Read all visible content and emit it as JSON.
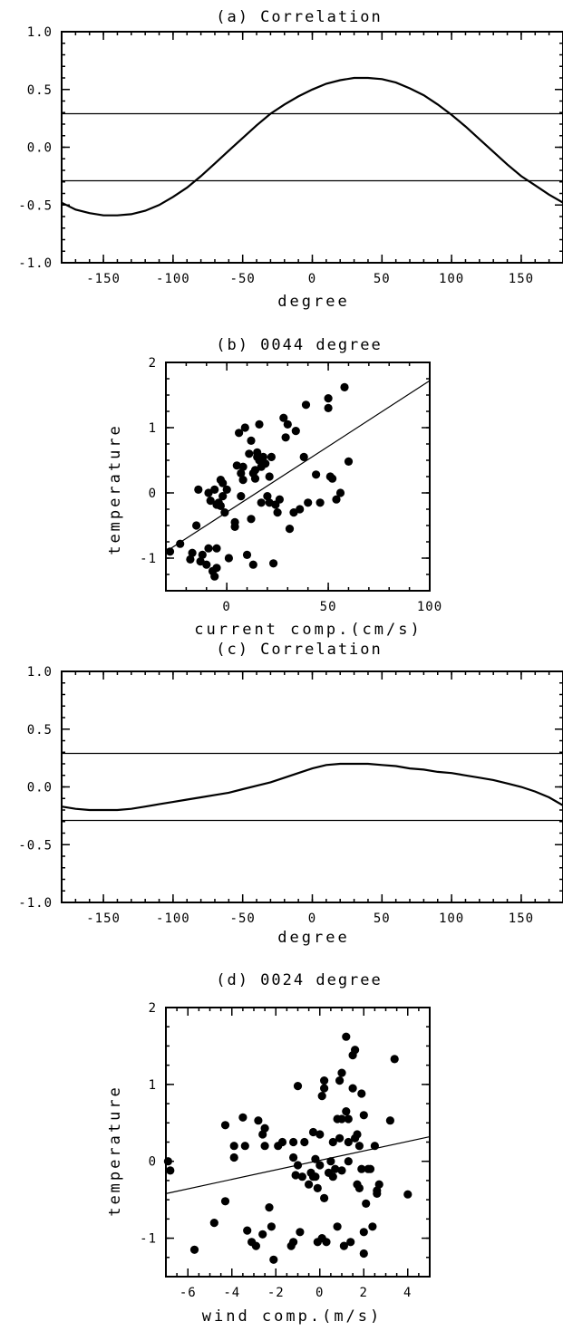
{
  "chart_data": [
    {
      "id": "a",
      "type": "line",
      "title": "(a) Correlation",
      "xlabel": "degree",
      "ylabel": "",
      "xlim": [
        -180,
        180
      ],
      "ylim": [
        -1.0,
        1.0
      ],
      "xticks": [
        -150,
        -100,
        -50,
        0,
        50,
        100,
        150
      ],
      "yticks": [
        1.0,
        0.5,
        0.0,
        -0.5,
        -1.0
      ],
      "ytick_labels": [
        "1.0",
        "0.5",
        "0.0",
        "-0.5",
        "-1.0"
      ],
      "series": [
        {
          "x": [
            -180,
            -170,
            -160,
            -150,
            -140,
            -130,
            -120,
            -110,
            -100,
            -90,
            -80,
            -70,
            -60,
            -50,
            -40,
            -30,
            -20,
            -10,
            0,
            10,
            20,
            30,
            40,
            50,
            60,
            70,
            80,
            90,
            100,
            110,
            120,
            130,
            140,
            150,
            160,
            170,
            180
          ],
          "y": [
            -0.48,
            -0.54,
            -0.57,
            -0.59,
            -0.59,
            -0.58,
            -0.55,
            -0.5,
            -0.43,
            -0.35,
            -0.25,
            -0.14,
            -0.03,
            0.08,
            0.19,
            0.29,
            0.37,
            0.44,
            0.5,
            0.55,
            0.58,
            0.6,
            0.6,
            0.59,
            0.56,
            0.51,
            0.45,
            0.37,
            0.28,
            0.18,
            0.07,
            -0.04,
            -0.15,
            -0.25,
            -0.33,
            -0.41,
            -0.48
          ]
        }
      ],
      "hlines": [
        0.29,
        -0.29
      ]
    },
    {
      "id": "b",
      "type": "scatter",
      "title": "(b) 0044 degree",
      "xlabel": "current comp.(cm/s)",
      "ylabel": "temperature",
      "xlim": [
        -30,
        100
      ],
      "ylim": [
        -1.5,
        2.0
      ],
      "xticks": [
        0,
        50,
        100
      ],
      "yticks": [
        -1,
        0,
        1,
        2
      ],
      "points": [
        [
          -28,
          -0.9
        ],
        [
          -23,
          -0.78
        ],
        [
          -18,
          -1.02
        ],
        [
          -17,
          -0.92
        ],
        [
          -15,
          -0.5
        ],
        [
          -14,
          0.05
        ],
        [
          -13,
          -1.05
        ],
        [
          -12,
          -0.95
        ],
        [
          -10,
          -1.1
        ],
        [
          -9,
          -0.85
        ],
        [
          -9,
          0.0
        ],
        [
          -8,
          -0.12
        ],
        [
          -7,
          -1.2
        ],
        [
          -6,
          -1.28
        ],
        [
          -6,
          0.05
        ],
        [
          -5,
          -0.18
        ],
        [
          -5,
          -1.15
        ],
        [
          -5,
          -0.85
        ],
        [
          -4,
          -0.15
        ],
        [
          -3,
          0.2
        ],
        [
          -3,
          -0.2
        ],
        [
          -2,
          -0.05
        ],
        [
          -2,
          0.15
        ],
        [
          -1,
          -0.3
        ],
        [
          0,
          0.05
        ],
        [
          1,
          -1.0
        ],
        [
          4,
          -0.52
        ],
        [
          4,
          -0.45
        ],
        [
          5,
          0.42
        ],
        [
          6,
          0.92
        ],
        [
          7,
          0.3
        ],
        [
          7,
          -0.05
        ],
        [
          8,
          0.2
        ],
        [
          8,
          0.4
        ],
        [
          9,
          1.0
        ],
        [
          10,
          -0.95
        ],
        [
          11,
          0.6
        ],
        [
          12,
          0.8
        ],
        [
          12,
          -0.4
        ],
        [
          13,
          0.3
        ],
        [
          13,
          -1.1
        ],
        [
          14,
          0.35
        ],
        [
          14,
          0.22
        ],
        [
          15,
          0.55
        ],
        [
          15,
          0.62
        ],
        [
          16,
          1.05
        ],
        [
          16,
          0.5
        ],
        [
          17,
          -0.15
        ],
        [
          17,
          0.4
        ],
        [
          18,
          0.55
        ],
        [
          19,
          0.45
        ],
        [
          20,
          -0.05
        ],
        [
          21,
          0.25
        ],
        [
          21,
          -0.15
        ],
        [
          22,
          0.55
        ],
        [
          23,
          -1.08
        ],
        [
          24,
          -0.18
        ],
        [
          25,
          -0.3
        ],
        [
          26,
          -0.1
        ],
        [
          28,
          1.15
        ],
        [
          29,
          0.85
        ],
        [
          30,
          1.05
        ],
        [
          31,
          -0.55
        ],
        [
          33,
          -0.3
        ],
        [
          34,
          0.95
        ],
        [
          36,
          -0.25
        ],
        [
          38,
          0.55
        ],
        [
          39,
          1.35
        ],
        [
          40,
          -0.15
        ],
        [
          44,
          0.28
        ],
        [
          46,
          -0.15
        ],
        [
          50,
          1.45
        ],
        [
          50,
          1.3
        ],
        [
          51,
          0.25
        ],
        [
          52,
          0.22
        ],
        [
          54,
          -0.1
        ],
        [
          56,
          0.0
        ],
        [
          58,
          1.62
        ],
        [
          60,
          0.48
        ]
      ],
      "fit_line": [
        [
          -30,
          -0.9
        ],
        [
          100,
          1.72
        ]
      ]
    },
    {
      "id": "c",
      "type": "line",
      "title": "(c) Correlation",
      "xlabel": "degree",
      "ylabel": "",
      "xlim": [
        -180,
        180
      ],
      "ylim": [
        -1.0,
        1.0
      ],
      "xticks": [
        -150,
        -100,
        -50,
        0,
        50,
        100,
        150
      ],
      "yticks": [
        1.0,
        0.5,
        0.0,
        -0.5,
        -1.0
      ],
      "ytick_labels": [
        "1.0",
        "0.5",
        "0.0",
        "-0.5",
        "-1.0"
      ],
      "series": [
        {
          "x": [
            -180,
            -170,
            -160,
            -150,
            -140,
            -130,
            -120,
            -110,
            -100,
            -90,
            -80,
            -70,
            -60,
            -50,
            -40,
            -30,
            -20,
            -10,
            0,
            10,
            20,
            30,
            40,
            50,
            60,
            70,
            80,
            90,
            100,
            110,
            120,
            130,
            140,
            150,
            160,
            170,
            180
          ],
          "y": [
            -0.17,
            -0.19,
            -0.2,
            -0.2,
            -0.2,
            -0.19,
            -0.17,
            -0.15,
            -0.13,
            -0.11,
            -0.09,
            -0.07,
            -0.05,
            -0.02,
            0.01,
            0.04,
            0.08,
            0.12,
            0.16,
            0.19,
            0.2,
            0.2,
            0.2,
            0.19,
            0.18,
            0.16,
            0.15,
            0.13,
            0.12,
            0.1,
            0.08,
            0.06,
            0.03,
            0.0,
            -0.04,
            -0.09,
            -0.16
          ]
        }
      ],
      "hlines": [
        0.29,
        -0.29
      ]
    },
    {
      "id": "d",
      "type": "scatter",
      "title": "(d) 0024 degree",
      "xlabel": "wind comp.(m/s)",
      "ylabel": "temperature",
      "xlim": [
        -7,
        5
      ],
      "ylim": [
        -1.5,
        2.0
      ],
      "xticks": [
        -6,
        -4,
        -2,
        0,
        2,
        4
      ],
      "yticks": [
        -1,
        0,
        1,
        2
      ],
      "points": [
        [
          -6.9,
          0.0
        ],
        [
          -6.8,
          -0.12
        ],
        [
          -5.7,
          -1.15
        ],
        [
          -4.8,
          -0.8
        ],
        [
          -4.3,
          -0.52
        ],
        [
          -4.3,
          0.47
        ],
        [
          -3.9,
          0.2
        ],
        [
          -3.9,
          0.05
        ],
        [
          -3.5,
          0.57
        ],
        [
          -3.4,
          0.2
        ],
        [
          -3.3,
          -0.9
        ],
        [
          -3.1,
          -1.05
        ],
        [
          -2.9,
          -1.1
        ],
        [
          -2.8,
          0.53
        ],
        [
          -2.6,
          0.35
        ],
        [
          -2.6,
          -0.95
        ],
        [
          -2.5,
          0.43
        ],
        [
          -2.5,
          0.2
        ],
        [
          -2.3,
          -0.6
        ],
        [
          -2.2,
          -0.85
        ],
        [
          -2.1,
          -1.28
        ],
        [
          -1.9,
          0.2
        ],
        [
          -1.7,
          0.25
        ],
        [
          -1.3,
          -1.1
        ],
        [
          -1.2,
          -1.05
        ],
        [
          -1.2,
          0.25
        ],
        [
          -1.2,
          0.05
        ],
        [
          -1.1,
          -0.18
        ],
        [
          -1.0,
          -0.05
        ],
        [
          -1.0,
          0.98
        ],
        [
          -0.9,
          -0.92
        ],
        [
          -0.8,
          -0.2
        ],
        [
          -0.7,
          0.25
        ],
        [
          -0.5,
          -0.3
        ],
        [
          -0.4,
          -0.15
        ],
        [
          -0.3,
          -0.2
        ],
        [
          -0.3,
          0.38
        ],
        [
          -0.2,
          -0.2
        ],
        [
          -0.2,
          0.03
        ],
        [
          -0.1,
          -1.05
        ],
        [
          -0.1,
          -0.35
        ],
        [
          0.0,
          -0.05
        ],
        [
          0.0,
          0.35
        ],
        [
          0.1,
          0.85
        ],
        [
          0.1,
          -1.0
        ],
        [
          0.2,
          -0.48
        ],
        [
          0.2,
          0.95
        ],
        [
          0.2,
          1.05
        ],
        [
          0.3,
          -1.05
        ],
        [
          0.4,
          -0.15
        ],
        [
          0.5,
          0.0
        ],
        [
          0.6,
          0.25
        ],
        [
          0.6,
          -0.2
        ],
        [
          0.7,
          -0.1
        ],
        [
          0.8,
          0.55
        ],
        [
          0.8,
          -0.85
        ],
        [
          0.9,
          1.05
        ],
        [
          0.9,
          0.3
        ],
        [
          1.0,
          1.15
        ],
        [
          1.0,
          -0.12
        ],
        [
          1.0,
          0.55
        ],
        [
          1.1,
          -1.1
        ],
        [
          1.2,
          0.65
        ],
        [
          1.2,
          1.62
        ],
        [
          1.3,
          0.55
        ],
        [
          1.3,
          0.25
        ],
        [
          1.3,
          0.0
        ],
        [
          1.4,
          -1.05
        ],
        [
          1.5,
          1.38
        ],
        [
          1.5,
          0.95
        ],
        [
          1.6,
          1.45
        ],
        [
          1.6,
          0.3
        ],
        [
          1.7,
          0.35
        ],
        [
          1.7,
          -0.3
        ],
        [
          1.8,
          0.2
        ],
        [
          1.8,
          -0.35
        ],
        [
          1.9,
          -0.1
        ],
        [
          1.9,
          0.88
        ],
        [
          2.0,
          -0.92
        ],
        [
          2.0,
          -1.2
        ],
        [
          2.0,
          0.6
        ],
        [
          2.1,
          -0.55
        ],
        [
          2.2,
          -0.1
        ],
        [
          2.3,
          -0.1
        ],
        [
          2.4,
          -0.85
        ],
        [
          2.5,
          0.2
        ],
        [
          2.6,
          -0.38
        ],
        [
          2.6,
          -0.42
        ],
        [
          2.7,
          -0.3
        ],
        [
          3.2,
          0.53
        ],
        [
          3.4,
          1.33
        ],
        [
          4.0,
          -0.43
        ]
      ],
      "fit_line": [
        [
          -7,
          -0.42
        ],
        [
          5,
          0.32
        ]
      ]
    }
  ]
}
